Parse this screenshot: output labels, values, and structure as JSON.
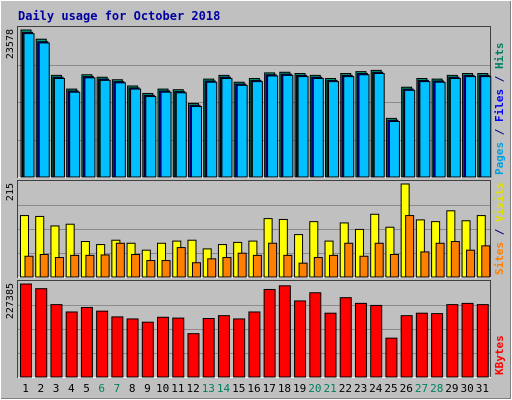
{
  "chart_data": {
    "type": "bar",
    "title": "Daily usage for October 2018",
    "categories": [
      "1",
      "2",
      "3",
      "4",
      "5",
      "6",
      "7",
      "8",
      "9",
      "10",
      "11",
      "12",
      "13",
      "14",
      "15",
      "16",
      "17",
      "18",
      "19",
      "20",
      "21",
      "22",
      "23",
      "24",
      "25",
      "26",
      "27",
      "28",
      "29",
      "30",
      "31"
    ],
    "weekend_days": [
      "6",
      "7",
      "13",
      "14",
      "20",
      "21",
      "27",
      "28"
    ],
    "panels": [
      {
        "id": "hits",
        "max_label": "23578",
        "ymax": 23578,
        "right_label_parts": [
          {
            "text": "Pages",
            "color": "#00a0e0"
          },
          {
            "text": " / ",
            "color": "#000080"
          },
          {
            "text": "Files",
            "color": "#0000ff"
          },
          {
            "text": " / ",
            "color": "#000080"
          },
          {
            "text": "Hits",
            "color": "#008060"
          }
        ],
        "series": [
          {
            "name": "Hits",
            "color": "#00a080",
            "values": [
              23578,
              22100,
              16300,
              14100,
              16400,
              16000,
              15600,
              14600,
              13400,
              14100,
              14000,
              11800,
              15700,
              16300,
              15200,
              15800,
              16700,
              16800,
              16600,
              16300,
              15800,
              16600,
              16900,
              17100,
              9400,
              14400,
              15800,
              15700,
              16300,
              16600,
              16600
            ]
          },
          {
            "name": "Files",
            "color": "#0000ff",
            "values": [
              23200,
              21700,
              16000,
              13800,
              16100,
              15700,
              15300,
              14300,
              13100,
              13800,
              13700,
              11500,
              15400,
              16000,
              14900,
              15500,
              16400,
              16500,
              16300,
              16000,
              15500,
              16300,
              16600,
              16800,
              9100,
              14100,
              15500,
              15400,
              16000,
              16300,
              16300
            ]
          },
          {
            "name": "Pages",
            "color": "#00c0ff",
            "values": [
              23000,
              21500,
              15800,
              13600,
              15900,
              15500,
              15100,
              14100,
              12900,
              13600,
              13500,
              11300,
              15200,
              15800,
              14700,
              15300,
              16200,
              16300,
              16100,
              15800,
              15300,
              16100,
              16400,
              16600,
              8900,
              13900,
              15300,
              15200,
              15800,
              16100,
              16100
            ]
          }
        ]
      },
      {
        "id": "visits",
        "max_label": "215",
        "ymax": 215,
        "right_label_parts": [
          {
            "text": "Sites",
            "color": "#ff8000"
          },
          {
            "text": " / ",
            "color": "#000080"
          },
          {
            "text": "Visits",
            "color": "#e0e000"
          }
        ],
        "series": [
          {
            "name": "Visits",
            "color": "#ffff00",
            "values": [
              142,
              140,
              118,
              122,
              82,
              75,
              85,
              78,
              62,
              78,
              83,
              85,
              65,
              75,
              80,
              83,
              135,
              133,
              98,
              128,
              83,
              125,
              110,
              145,
              115,
              215,
              132,
              128,
              153,
              130,
              142
            ]
          },
          {
            "name": "Sites",
            "color": "#ff8000",
            "values": [
              48,
              52,
              45,
              50,
              50,
              51,
              78,
              52,
              38,
              38,
              68,
              33,
              42,
              45,
              55,
              50,
              78,
              50,
              32,
              45,
              50,
              78,
              48,
              78,
              52,
              142,
              58,
              78,
              82,
              62,
              72
            ]
          }
        ]
      },
      {
        "id": "kbytes",
        "max_label": "227385",
        "ymax": 227385,
        "right_label_parts": [
          {
            "text": "KBytes",
            "color": "#ff0000"
          }
        ],
        "series": [
          {
            "name": "KBytes",
            "color": "#ff0000",
            "values": [
              227385,
              216000,
              177000,
              159000,
              170000,
              161000,
              147000,
              142000,
              134000,
              146000,
              144000,
              106000,
              143000,
              150000,
              142000,
              159000,
              214000,
              223000,
              186000,
              206000,
              156000,
              194000,
              180000,
              175000,
              95000,
              150000,
              156000,
              155000,
              177000,
              180000,
              177000
            ]
          }
        ]
      }
    ],
    "grid": true,
    "legend": "right"
  }
}
